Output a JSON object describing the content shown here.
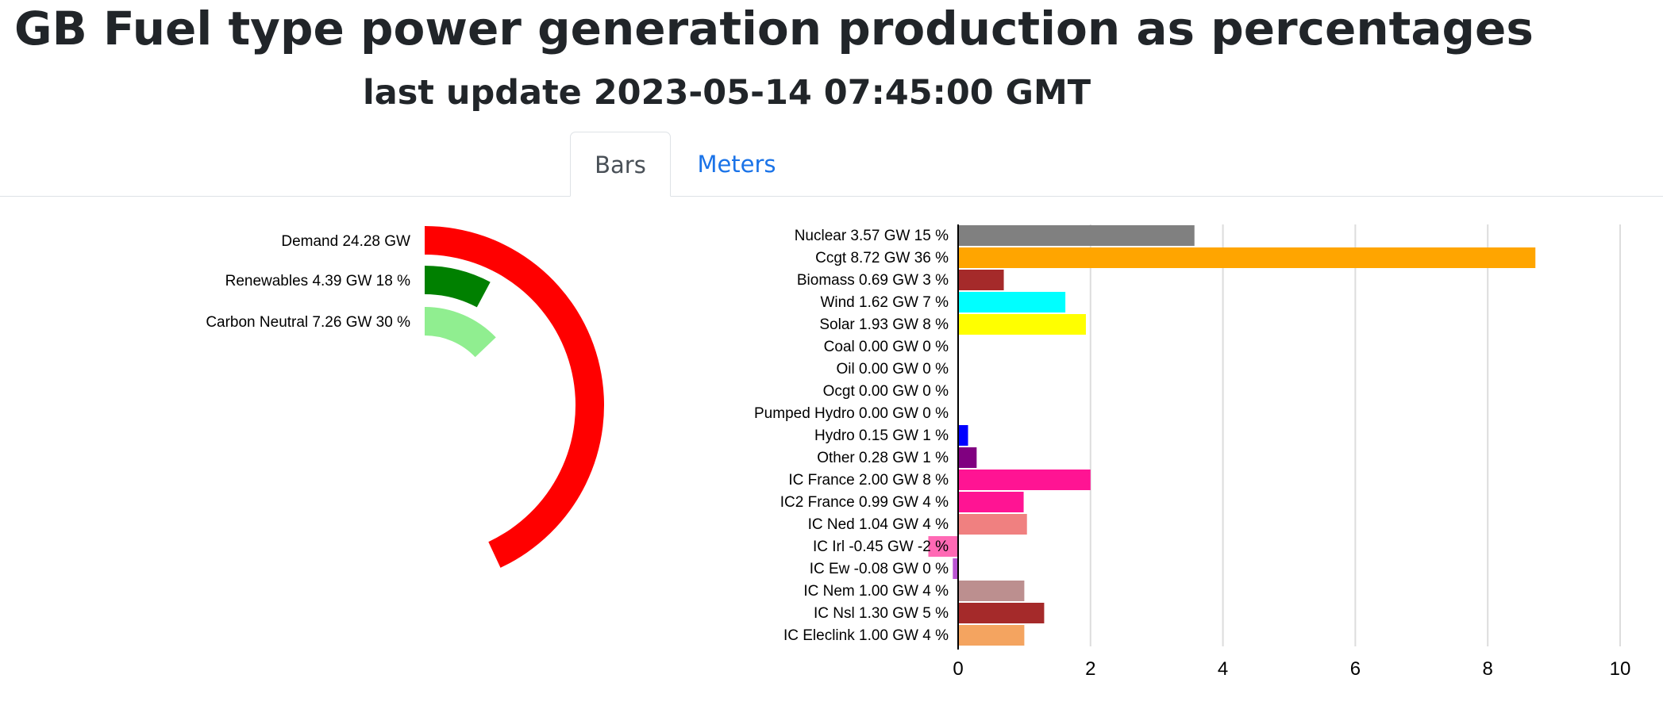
{
  "header": {
    "title": "GB Fuel type power generation production as percentages",
    "update": "last update 2023-05-14 07:45:00 GMT"
  },
  "tabs": [
    {
      "label": "Bars",
      "active": true
    },
    {
      "label": "Meters",
      "active": false
    }
  ],
  "colors": {
    "text": "#212529",
    "tab_link": "#1a73e8",
    "gridline": "#dddddd"
  },
  "chart_data": [
    {
      "type": "radial-bar",
      "max_gw": 24.28,
      "series": [
        {
          "label": "Demand 24.28 GW",
          "name": "Demand",
          "value": 24.28,
          "percent": 100,
          "color": "#ff0000"
        },
        {
          "label": "Renewables 4.39 GW 18 %",
          "name": "Renewables",
          "value": 4.39,
          "percent": 18,
          "color": "#008000"
        },
        {
          "label": "Carbon Neutral 7.26 GW 30 %",
          "name": "Carbon Neutral",
          "value": 7.26,
          "percent": 30,
          "color": "#90ee90"
        }
      ]
    },
    {
      "type": "bar",
      "orientation": "horizontal",
      "xlim": [
        -0.5,
        10.5
      ],
      "x_ticks": [
        "0",
        "2",
        "4",
        "6",
        "8",
        "10"
      ],
      "grid": true,
      "bars": [
        {
          "label": "Nuclear 3.57 GW 15 %",
          "value": 3.57,
          "color": "#808080"
        },
        {
          "label": "Ccgt 8.72 GW 36 %",
          "value": 8.72,
          "color": "#ffa500"
        },
        {
          "label": "Biomass 0.69 GW 3 %",
          "value": 0.69,
          "color": "#a52a2a"
        },
        {
          "label": "Wind 1.62 GW 7 %",
          "value": 1.62,
          "color": "#00ffff"
        },
        {
          "label": "Solar 1.93 GW 8 %",
          "value": 1.93,
          "color": "#ffff00"
        },
        {
          "label": "Coal 0.00 GW 0 %",
          "value": 0.0,
          "color": "#000000"
        },
        {
          "label": "Oil 0.00 GW 0 %",
          "value": 0.0,
          "color": "#000000"
        },
        {
          "label": "Ocgt 0.00 GW 0 %",
          "value": 0.0,
          "color": "#000000"
        },
        {
          "label": "Pumped Hydro 0.00 GW 0 %",
          "value": 0.0,
          "color": "#000000"
        },
        {
          "label": "Hydro 0.15 GW 1 %",
          "value": 0.15,
          "color": "#0000ff"
        },
        {
          "label": "Other 0.28 GW 1 %",
          "value": 0.28,
          "color": "#800080"
        },
        {
          "label": "IC France 2.00 GW 8 %",
          "value": 2.0,
          "color": "#ff1493"
        },
        {
          "label": "IC2 France 0.99 GW 4 %",
          "value": 0.99,
          "color": "#ff1493"
        },
        {
          "label": "IC Ned 1.04 GW 4 %",
          "value": 1.04,
          "color": "#f08080"
        },
        {
          "label": "IC Irl -0.45 GW -2 %",
          "value": -0.45,
          "color": "#ff69b4"
        },
        {
          "label": "IC Ew -0.08 GW 0 %",
          "value": -0.08,
          "color": "#ba55d3"
        },
        {
          "label": "IC Nem 1.00 GW 4 %",
          "value": 1.0,
          "color": "#bc8f8f"
        },
        {
          "label": "IC Nsl 1.30 GW 5 %",
          "value": 1.3,
          "color": "#a52a2a"
        },
        {
          "label": "IC Eleclink 1.00 GW 4 %",
          "value": 1.0,
          "color": "#f4a460"
        }
      ]
    }
  ]
}
